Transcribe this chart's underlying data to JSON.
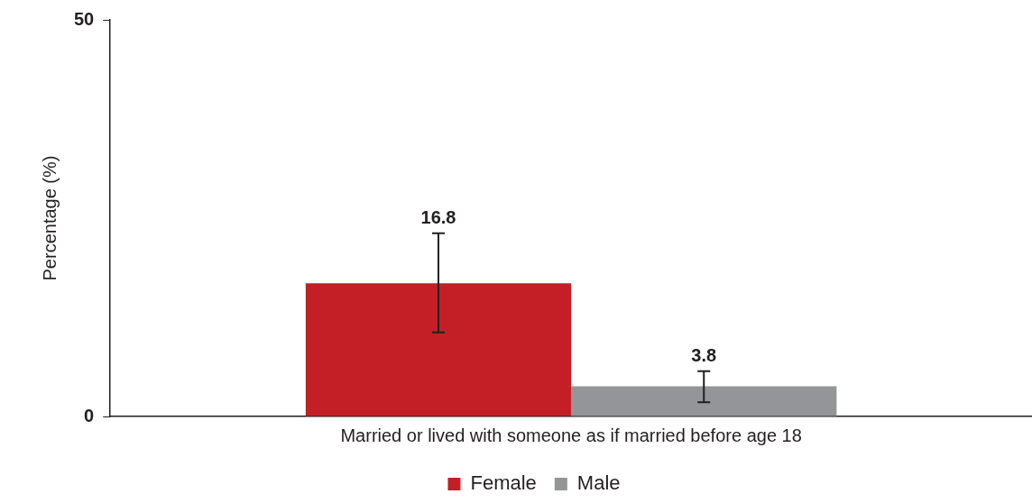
{
  "chart_data": {
    "type": "bar",
    "ylabel": "Percentage (%)",
    "categories": [
      "Married or lived with someone as if married before age 18"
    ],
    "series": [
      {
        "name": "Female",
        "color": "#c41f26",
        "values": [
          16.8
        ],
        "errors": [
          [
            10.6,
            23.1
          ]
        ]
      },
      {
        "name": "Male",
        "color": "#939598",
        "values": [
          3.8
        ],
        "errors": [
          [
            1.8,
            5.7
          ]
        ]
      }
    ],
    "ylim": [
      0,
      50
    ],
    "yticks": [
      0,
      50
    ],
    "data_labels": true,
    "legend": "bottom"
  }
}
